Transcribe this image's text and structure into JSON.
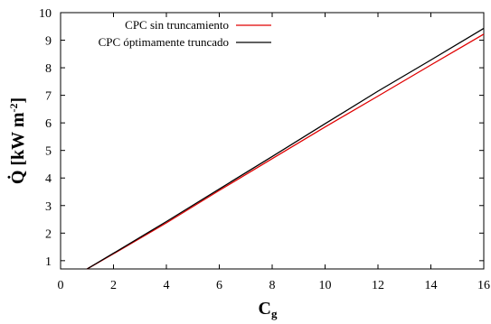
{
  "chart_data": {
    "type": "line",
    "xlabel": "C",
    "xlabel_sub": "g",
    "ylabel": "Q̇ [kW m",
    "ylabel_sup": "-2",
    "ylabel_end": "]",
    "xlim": [
      0,
      16
    ],
    "ylim": [
      0.7,
      10
    ],
    "xticks": [
      0,
      2,
      4,
      6,
      8,
      10,
      12,
      14,
      16
    ],
    "yticks": [
      1,
      2,
      3,
      4,
      5,
      6,
      7,
      8,
      9,
      10
    ],
    "grid": false,
    "legend_position": "top-left",
    "series": [
      {
        "name": "CPC sin truncamiento",
        "color": "#e00000",
        "x": [
          1,
          2,
          4,
          6,
          8,
          10,
          12,
          14,
          16
        ],
        "y": [
          0.7,
          1.25,
          2.37,
          3.55,
          4.7,
          5.85,
          6.97,
          8.1,
          9.22
        ]
      },
      {
        "name": "CPC óptimamente truncado",
        "color": "#000000",
        "x": [
          1,
          2,
          4,
          6,
          8,
          10,
          12,
          14,
          16
        ],
        "y": [
          0.7,
          1.27,
          2.42,
          3.6,
          4.78,
          5.97,
          7.15,
          8.28,
          9.43
        ]
      }
    ]
  }
}
